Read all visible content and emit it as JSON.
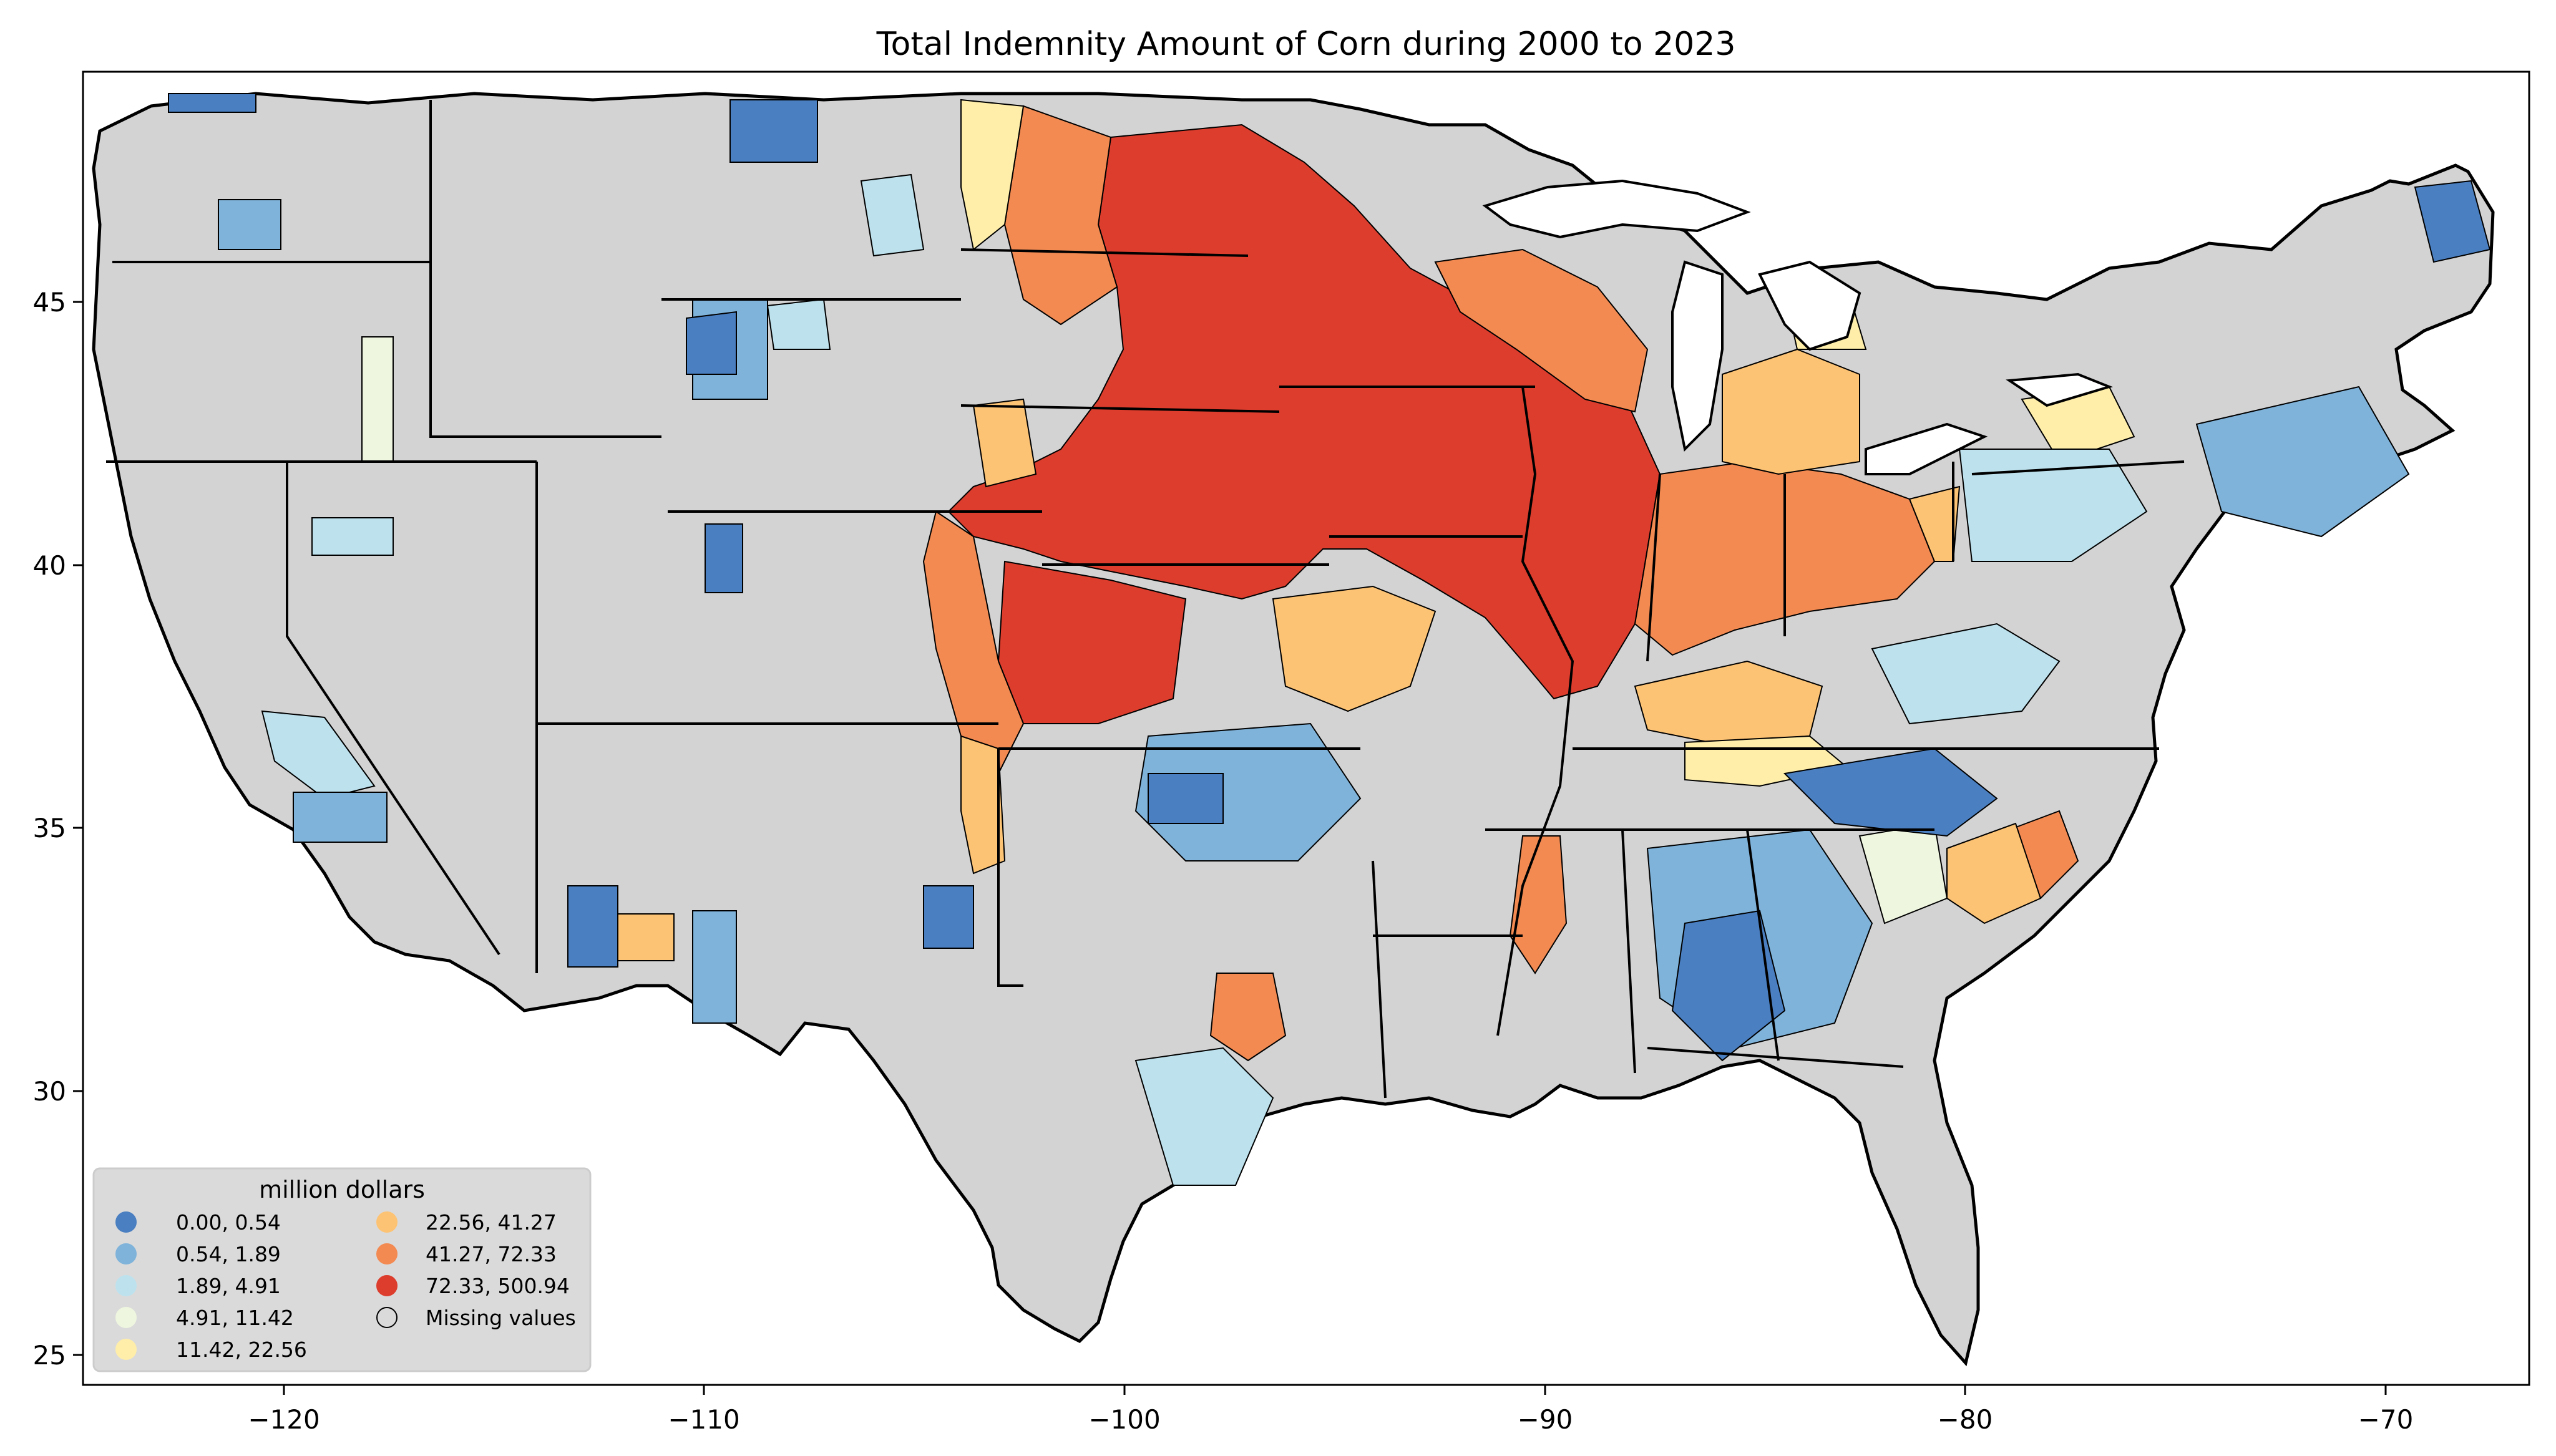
{
  "title": "Total Indemnity Amount of Corn during 2000 to 2023",
  "axes": {
    "x_ticks": [
      "−120",
      "−110",
      "−100",
      "−90",
      "−80",
      "−70"
    ],
    "y_ticks": [
      "45",
      "40",
      "35",
      "30",
      "25"
    ],
    "xlim": [
      -124.8,
      -66.4
    ],
    "ylim": [
      24.5,
      49.5
    ]
  },
  "legend": {
    "title": "million dollars",
    "entries": [
      {
        "label": "0.00,   0.54",
        "color": "#4a7fc1"
      },
      {
        "label": "0.54,   1.89",
        "color": "#7fb3da"
      },
      {
        "label": "1.89,   4.91",
        "color": "#bde2ee"
      },
      {
        "label": "4.91,  11.42",
        "color": "#eef6df"
      },
      {
        "label": "11.42,  22.56",
        "color": "#feeeaa"
      },
      {
        "label": "22.56,  41.27",
        "color": "#fdc374"
      },
      {
        "label": "41.27,  72.33",
        "color": "#f28a52"
      },
      {
        "label": "72.33, 500.94",
        "color": "#dc3d2d"
      },
      {
        "label": "Missing values",
        "color": "none"
      }
    ]
  },
  "colors": {
    "missing": "#d3d3d3",
    "border": "#000000"
  }
}
